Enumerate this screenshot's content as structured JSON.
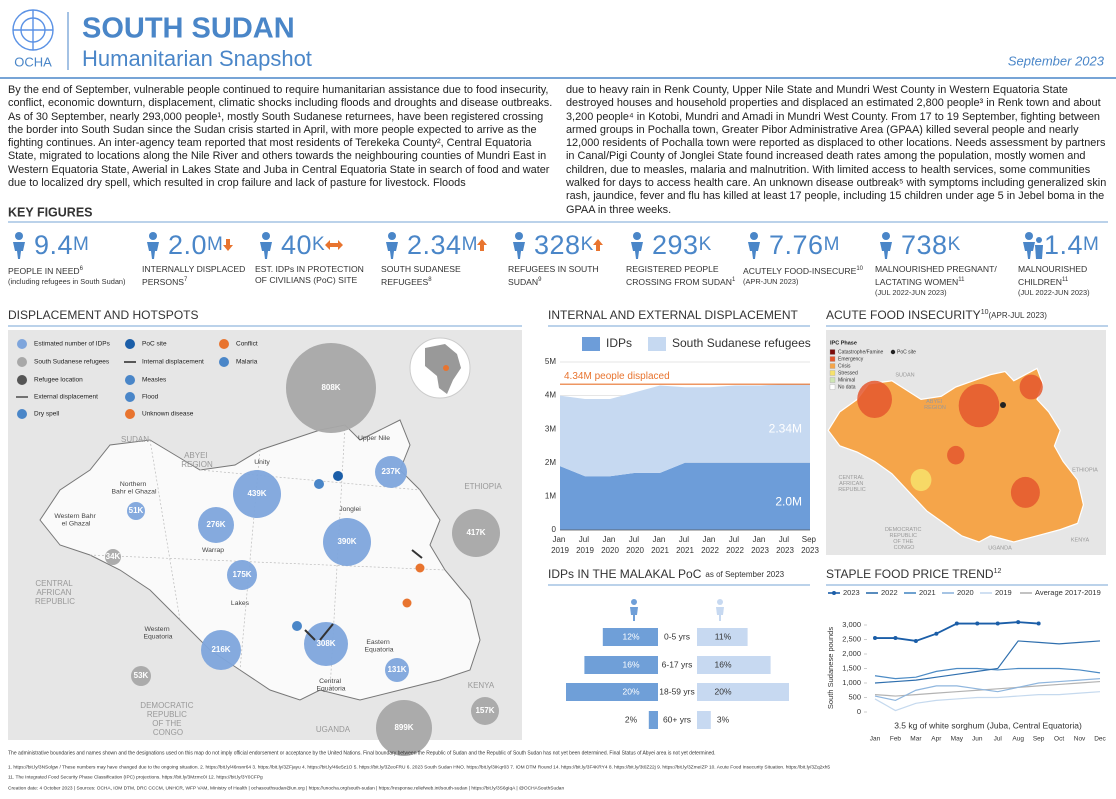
{
  "header": {
    "org": "OCHA",
    "title": "SOUTH SUDAN",
    "subtitle": "Humanitarian Snapshot",
    "date": "September 2023"
  },
  "intro": {
    "paragraphs": [
      "By the end of September, vulnerable people continued to require humanitarian assistance due to food insecurity, conflict, economic downturn, displacement, climatic shocks including floods and droughts and disease outbreaks. As of 30 September, nearly 293,000 people¹, mostly South Sudanese returnees, have been registered crossing the border into South Sudan since the Sudan crisis started in April, with more people expected to arrive as the fighting continues. An inter-agency team reported that most residents of Terekeka County², Central Equatoria State, migrated to locations along the Nile River and others towards the neighbouring counties of Mundri East in Western Equatoria State, Awerial in Lakes State and Juba in Central Equatoria State in search of food and water due to localized dry spell, which resulted in crop failure and lack of pasture for livestock. Floods",
      "due to heavy rain in Renk County, Upper Nile State and Mundri West County in Western Equatoria State destroyed houses and household properties and displaced an estimated 2,800 people³ in Renk town and about 3,200 people⁴ in Kotobi, Mundri and Amadi in Mundri West County. From 17 to 19 September, fighting between armed groups in Pochalla town, Greater Pibor Administrative Area (GPAA) killed several people and nearly 12,000 residents of Pochalla town were reported as displaced to other locations. Needs assessment by partners in Canal/Pigi County of Jonglei State found increased death rates among the population, mostly women and children, due to measles, malaria and malnutrition. With limited access to health services, some communities walked for days to access health care. An unknown disease outbreak⁵ with symptoms including generalized skin rash, jaundice, fever and flu has killed at least 17 people, including 15 children under age 5 in Jebel boma in the GPAA in three weeks."
    ]
  },
  "key_figures": {
    "title": "KEY FIGURES",
    "items": [
      {
        "number": "9.4",
        "unit": "M",
        "label": "PEOPLE IN NEED",
        "note": "6",
        "sublabel": "(including refugees in South Sudan)"
      },
      {
        "number": "2.0",
        "unit": "M",
        "label": "INTERNALLY DISPLACED PERSONS",
        "note": "7"
      },
      {
        "number": "40",
        "unit": "K",
        "label": "EST. IDPs IN PROTECTION OF CIVILIANS (PoC) SITE"
      },
      {
        "number": "2.34",
        "unit": "M",
        "label": "SOUTH SUDANESE REFUGEES",
        "note": "8"
      },
      {
        "number": "328",
        "unit": "K",
        "label": "REFUGEES IN SOUTH SUDAN",
        "note": "9"
      },
      {
        "number": "293",
        "unit": "K",
        "label": "REGISTERED PEOPLE CROSSING FROM SUDAN",
        "note": "1"
      },
      {
        "number": "7.76",
        "unit": "M",
        "label": "ACUTELY FOOD-INSECURE",
        "note": "10",
        "sublabel": "(APR-JUN 2023)"
      },
      {
        "number": "738",
        "unit": "K",
        "label": "MALNOURISHED PREGNANT/ LACTATING WOMEN",
        "note": "11",
        "sublabel": "(JUL 2022-JUN 2023)"
      },
      {
        "number": "1.4",
        "unit": "M",
        "label": "MALNOURISHED CHILDREN",
        "note": "11",
        "sublabel": "(JUL 2022-JUN 2023)"
      }
    ]
  },
  "map": {
    "title": "DISPLACEMENT AND HOTSPOTS",
    "legend": [
      "Estimated number of IDPs",
      "South Sudanese refugees",
      "Refugee location",
      "External displacement",
      "Dry spell",
      "PoC site",
      "Internal displacement",
      "Measles",
      "Flood",
      "Unknown disease",
      "Conflict",
      "Malaria"
    ],
    "bubbles": [
      {
        "label": "808K",
        "color": "#a8a8a8"
      },
      {
        "label": "439K",
        "color": "#7ea5dc"
      },
      {
        "label": "276K",
        "color": "#7ea5dc"
      },
      {
        "label": "237K",
        "color": "#7ea5dc"
      },
      {
        "label": "390K",
        "color": "#7ea5dc"
      },
      {
        "label": "175K",
        "color": "#7ea5dc"
      },
      {
        "label": "51K",
        "color": "#7ea5dc"
      },
      {
        "label": "34K",
        "color": "#a8a8a8"
      },
      {
        "label": "417K",
        "color": "#a8a8a8"
      },
      {
        "label": "216K",
        "color": "#7ea5dc"
      },
      {
        "label": "308K",
        "color": "#7ea5dc"
      },
      {
        "label": "131K",
        "color": "#7ea5dc"
      },
      {
        "label": "53K",
        "color": "#a8a8a8"
      },
      {
        "label": "157K",
        "color": "#a8a8a8"
      },
      {
        "label": "899K",
        "color": "#a8a8a8"
      }
    ],
    "places": [
      "SUDAN",
      "ETHIOPIA",
      "CENTRAL AFRICAN REPUBLIC",
      "DEMOCRATIC REPUBLIC OF THE CONGO",
      "KENYA",
      "UGANDA",
      "ABYEI REGION",
      "Upper Nile",
      "Unity",
      "Northern Bahr el Ghazal",
      "Western Bahr el Ghazal",
      "Warrap",
      "Jonglei",
      "Lakes",
      "Western Equatoria",
      "Central Equatoria",
      "Eastern Equatoria"
    ]
  },
  "food_insecurity": {
    "title": "ACUTE FOOD INSECURITY",
    "note": "10",
    "subtitle": "(APR-JUL 2023)",
    "legend_title": "IPC Phase",
    "legend": [
      {
        "label": "Catastrophe/Famine",
        "color": "#7a0a0a"
      },
      {
        "label": "Emergency",
        "color": "#e4572e"
      },
      {
        "label": "Crisis",
        "color": "#f5a54a"
      },
      {
        "label": "Stressed",
        "color": "#f7e26b"
      },
      {
        "label": "Minimal",
        "color": "#cfe6b4"
      },
      {
        "label": "No data",
        "color": "#ffffff"
      }
    ],
    "poc_label": "PoC site",
    "places": [
      "SUDAN",
      "ETHIOPIA",
      "CENTRAL AFRICAN REPUBLIC",
      "DEMOCRATIC REPUBLIC OF THE CONGO",
      "UGANDA",
      "KENYA",
      "ABYEI REGION"
    ]
  },
  "chart_data": [
    {
      "type": "area",
      "title": "INTERNAL AND EXTERNAL DISPLACEMENT",
      "categories": [
        "Jan 2019",
        "Jul 2019",
        "Jan 2020",
        "Jul 2020",
        "Jan 2021",
        "Jul 2021",
        "Jan 2022",
        "Jul 2022",
        "Jan 2023",
        "Jul 2023",
        "Sep 2023"
      ],
      "series": [
        {
          "name": "IDPs",
          "color": "#6d9dd9",
          "values": [
            1900000,
            1600000,
            1600000,
            1700000,
            1700000,
            2000000,
            2000000,
            2000000,
            2000000,
            2000000,
            2000000
          ],
          "value_labels": [
            null,
            null,
            null,
            null,
            null,
            null,
            null,
            null,
            null,
            null,
            "2.0M"
          ]
        },
        {
          "name": "South Sudanese refugees",
          "color": "#c6d9f1",
          "values": [
            2100000,
            2300000,
            2300000,
            2400000,
            2600000,
            2250000,
            2250000,
            2300000,
            2300000,
            2340000,
            2340000
          ],
          "value_labels": [
            null,
            null,
            null,
            null,
            null,
            null,
            null,
            null,
            null,
            null,
            "2.34M"
          ]
        }
      ],
      "stacked": true,
      "annotation": {
        "text": "4.34M people displaced",
        "value": 4340000,
        "color": "#e8742f"
      },
      "ylim": [
        0,
        5000000
      ],
      "yticks": [
        0,
        {
          "value": 1000000,
          "label": "1M"
        },
        {
          "value": 2000000,
          "label": "2M"
        },
        {
          "value": 3000000,
          "label": "3M"
        },
        {
          "value": 4000000,
          "label": "4M"
        },
        {
          "value": 5000000,
          "label": "5M"
        }
      ],
      "grid": true
    },
    {
      "type": "pyramid",
      "title": "IDPs IN THE MALAKAL PoC",
      "subtitle": "as of September 2023",
      "categories": [
        "0-5 yrs",
        "6-17 yrs",
        "18-59 yrs",
        "60+ yrs"
      ],
      "series": [
        {
          "color": "#6f9fd8",
          "values": [
            12,
            16,
            20,
            2
          ],
          "value_labels": [
            "12%",
            "16%",
            "20%",
            "2%"
          ]
        },
        {
          "color": "#c7d9f1",
          "values": [
            11,
            16,
            20,
            3
          ],
          "value_labels": [
            "11%",
            "16%",
            "20%",
            "3%"
          ]
        }
      ]
    },
    {
      "type": "line",
      "title": "STAPLE FOOD PRICE TREND",
      "note": "12",
      "ylabel": "South Sudanese pounds",
      "caption": "3.5 kg of white sorghum (Juba, Central Equatoria)",
      "categories": [
        "Jan",
        "Feb",
        "Mar",
        "Apr",
        "May",
        "Jun",
        "Jul",
        "Aug",
        "Sep",
        "Oct",
        "Nov",
        "Dec"
      ],
      "series": [
        {
          "name": "2023",
          "color": "#1b5ea8",
          "markers": true,
          "values": [
            2550,
            2550,
            2450,
            2700,
            3050,
            3050,
            3050,
            3100,
            3050,
            null,
            null,
            null
          ]
        },
        {
          "name": "2022",
          "color": "#2f6fae",
          "values": [
            1000,
            1050,
            1100,
            1200,
            1300,
            1400,
            1500,
            2450,
            2400,
            2350,
            2400,
            2450
          ]
        },
        {
          "name": "2021",
          "color": "#4b8ac4",
          "values": [
            1250,
            1150,
            1200,
            1400,
            1500,
            1500,
            1450,
            1500,
            1500,
            1500,
            1450,
            1350
          ]
        },
        {
          "name": "2020",
          "color": "#8fb6de",
          "values": [
            550,
            400,
            750,
            900,
            900,
            800,
            700,
            850,
            1000,
            1050,
            1100,
            1150
          ]
        },
        {
          "name": "2019",
          "color": "#c5d9ee",
          "values": [
            450,
            50,
            300,
            400,
            450,
            500,
            500,
            550,
            600,
            600,
            650,
            700
          ]
        },
        {
          "name": "Average 2017-2019",
          "color": "#b3b3b3",
          "values": [
            600,
            550,
            600,
            650,
            700,
            750,
            800,
            850,
            900,
            950,
            1000,
            1050
          ]
        }
      ],
      "ylim": [
        0,
        3000
      ],
      "yticks": [
        0,
        500,
        {
          "value": 1000,
          "label": "1,000"
        },
        {
          "value": 1500,
          "label": "1,500"
        },
        {
          "value": 2000,
          "label": "2,000"
        },
        {
          "value": 2500,
          "label": "2,500"
        },
        {
          "value": 3000,
          "label": "3,000"
        }
      ],
      "grid": false
    }
  ],
  "footer": {
    "lines": [
      "The administrative boundaries and names shown and the designations used on this map do not imply official endorsement or acceptance by the United Nations. Final boundary between the Republic of Sudan and the Republic of South Sudan has not yet been determined. Final Status of Abyei area is not yet determined.",
      "1. https://bit.ly/3NSolgw / These numbers may have changed due to the ongoing situation.   2. https://bit.ly/46nsnr64   3. https://bit.ly/3ZFjayu   4. https://bit.ly/46e5z1O   5. https://bit.ly/3ZeoFRU   6. 2023 South Sudan HNO. https://bit.ly/3IKqr03   7. IOM DTM Round 14. https://bit.ly/3F4KRY4   8. https://bit.ly/3t0Z22j   9. https://bit.ly/3ZmeIZP   10. Acute Food Insecurity Situation. https://bit.ly/3Zq2xh5",
      "11. The Integrated Food Security Phase Classification (IPC) projections. https://bit.ly/3Mzmc0I   12. https://bit.ly/3Y0CFPg",
      "Creation date: 4 October 2023  |  Sources: OCHA, IOM DTM, DRC CCCM, UNHCR, WFP VAM, Ministry of Health  |  ochasouthsudan@un.org  |  https://unocha.org/south-sudan  |  https://response.reliefweb.int/south-sudan  |  https://bit.ly/3S6gIqA  |  @OCHASouthSudan"
    ]
  }
}
